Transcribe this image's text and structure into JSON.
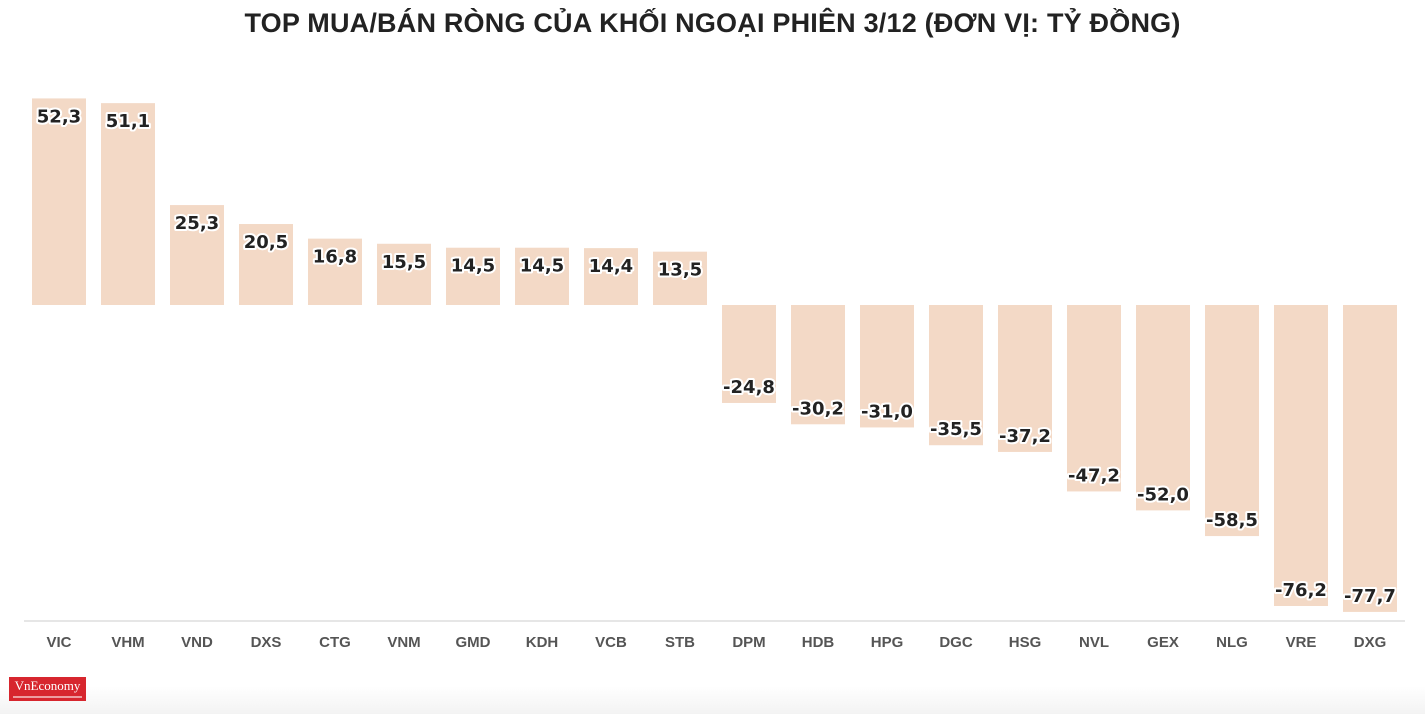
{
  "chart_data": {
    "type": "bar",
    "title": "TOP MUA/BÁN RÒNG CỦA KHỐI NGOẠI PHIÊN 3/12 (ĐƠN VỊ: TỶ ĐỒNG)",
    "categories": [
      "VIC",
      "VHM",
      "VND",
      "DXS",
      "CTG",
      "VNM",
      "GMD",
      "KDH",
      "VCB",
      "STB",
      "DPM",
      "HDB",
      "HPG",
      "DGC",
      "HSG",
      "NVL",
      "GEX",
      "NLG",
      "VRE",
      "DXG"
    ],
    "values": [
      52.3,
      51.1,
      25.3,
      20.5,
      16.8,
      15.5,
      14.5,
      14.5,
      14.4,
      13.5,
      -24.8,
      -30.2,
      -31.0,
      -35.5,
      -37.2,
      -47.2,
      -52.0,
      -58.5,
      -76.2,
      -77.7
    ],
    "value_labels": [
      "52,3",
      "51,1",
      "25,3",
      "20,5",
      "16,8",
      "15,5",
      "14,5",
      "14,5",
      "14,4",
      "13,5",
      "-24,8",
      "-30,2",
      "-31,0",
      "-35,5",
      "-37,2",
      "-47,2",
      "-52,0",
      "-58,5",
      "-76,2",
      "-77,7"
    ],
    "ylim": [
      -77.7,
      52.3
    ],
    "bar_color": "#f3d9c6",
    "axis_color": "#cccccc",
    "grid": false,
    "legend": "none"
  },
  "logo": {
    "text": "VnEconomy",
    "color": "#d7262e"
  }
}
